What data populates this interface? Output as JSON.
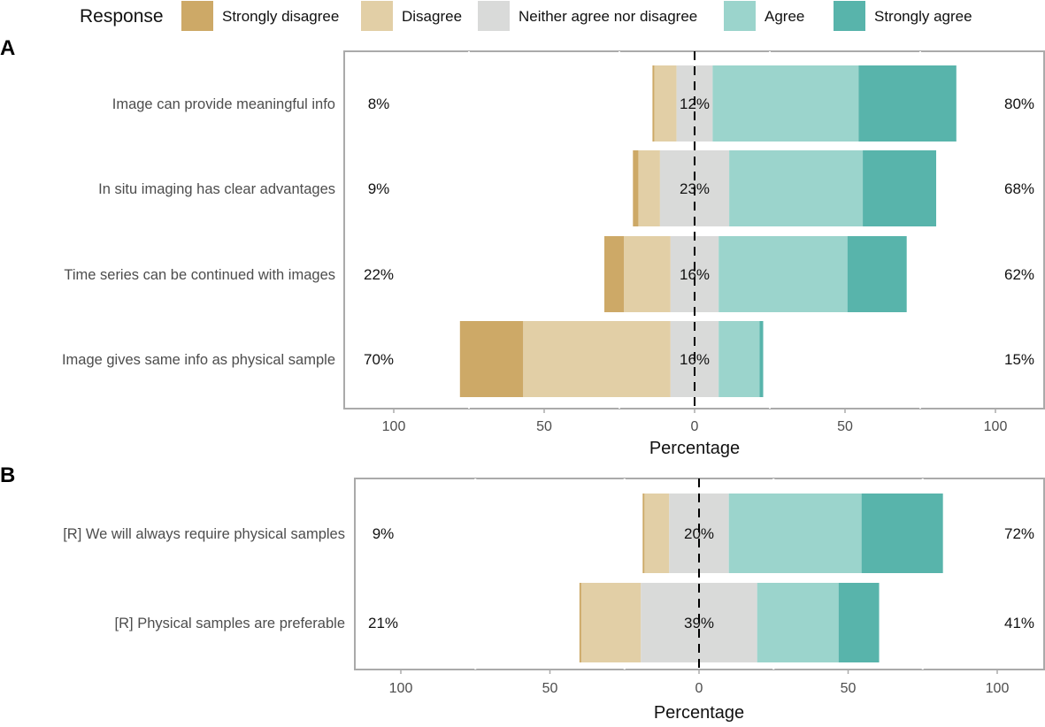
{
  "chart_data": [
    {
      "type": "bar",
      "panel_label": "A",
      "xlabel": "Percentage",
      "xticks": [
        "100",
        "50",
        "0",
        "50",
        "100"
      ],
      "xlim": [
        -100,
        100
      ],
      "categories": [
        "Image can provide meaningful info",
        "In situ imaging has clear advantages",
        "Time series can be continued with images",
        "Image gives same info as physical sample"
      ],
      "series": [
        {
          "name": "Strongly disagree",
          "values": [
            0.6,
            1.8,
            6.5,
            21
          ]
        },
        {
          "name": "Disagree",
          "values": [
            7.4,
            7.2,
            15.5,
            49
          ]
        },
        {
          "name": "Neither agree nor disagree",
          "values": [
            12,
            23,
            16,
            16
          ]
        },
        {
          "name": "Agree",
          "values": [
            48.5,
            44.4,
            42.8,
            13.6
          ]
        },
        {
          "name": "Strongly agree",
          "values": [
            32.5,
            24.4,
            19.7,
            1.2
          ]
        }
      ],
      "left_labels": [
        "8%",
        "9%",
        "22%",
        "70%"
      ],
      "center_labels": [
        "12%",
        "23%",
        "16%",
        "16%"
      ],
      "right_labels": [
        "80%",
        "68%",
        "62%",
        "15%"
      ]
    },
    {
      "type": "bar",
      "panel_label": "B",
      "xlabel": "Percentage",
      "xticks": [
        "100",
        "50",
        "0",
        "50",
        "100"
      ],
      "xlim": [
        -100,
        100
      ],
      "categories": [
        "[R] We will always require physical samples",
        "[R] Physical samples are preferable"
      ],
      "series": [
        {
          "name": "Strongly disagree",
          "values": [
            0.6,
            0.6
          ]
        },
        {
          "name": "Disagree",
          "values": [
            8.3,
            20
          ]
        },
        {
          "name": "Neither agree nor disagree",
          "values": [
            20,
            39
          ]
        },
        {
          "name": "Agree",
          "values": [
            44.5,
            27.3
          ]
        },
        {
          "name": "Strongly agree",
          "values": [
            27.3,
            13.6
          ]
        }
      ],
      "left_labels": [
        "9%",
        "21%"
      ],
      "center_labels": [
        "20%",
        "39%"
      ],
      "right_labels": [
        "72%",
        "41%"
      ]
    }
  ],
  "legend": {
    "title": "Response",
    "position": "top",
    "items": [
      "Strongly disagree",
      "Disagree",
      "Neither agree nor disagree",
      "Agree",
      "Strongly agree"
    ]
  },
  "colors": [
    "#CDA967",
    "#E2CFA6",
    "#D9DAD9",
    "#9BD4CC",
    "#58B4AB"
  ]
}
